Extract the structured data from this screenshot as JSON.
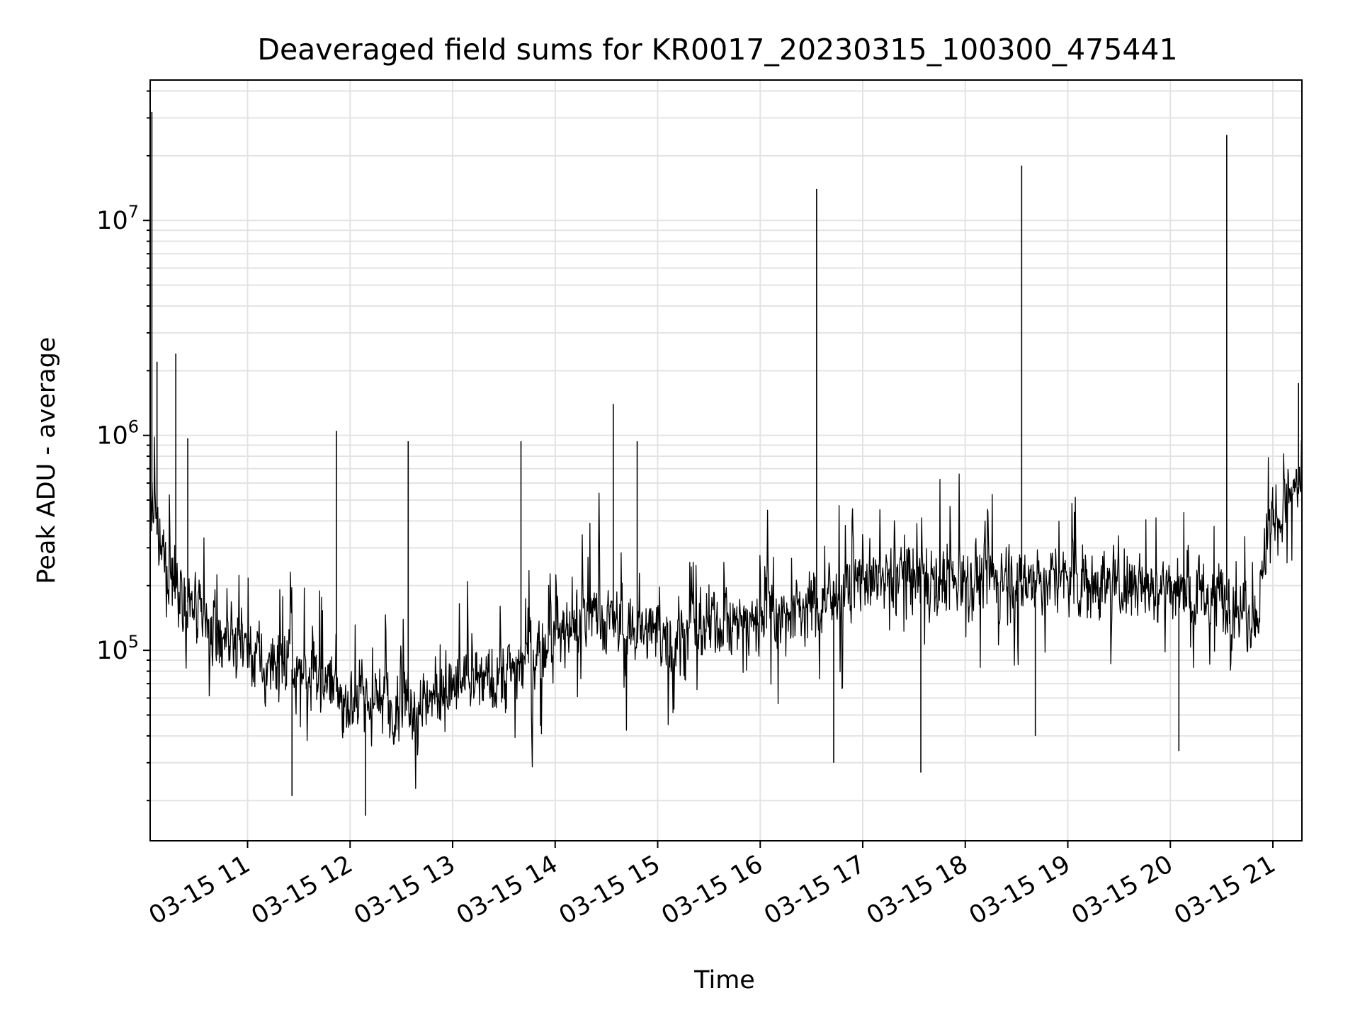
{
  "chart_data": {
    "type": "line",
    "title": "Deaveraged field sums for KR0017_20230315_100300_475441",
    "xlabel": "Time",
    "ylabel": "Peak ADU - average",
    "yscale": "log",
    "grid": true,
    "grid_minor": true,
    "line_color": "#000000",
    "grid_color": "#e3e3e3",
    "xlim": [
      "03-15 10:03",
      "03-15 21:17"
    ],
    "ylim": [
      13000,
      45000000
    ],
    "x_ticks": [
      "03-15 11",
      "03-15 12",
      "03-15 13",
      "03-15 14",
      "03-15 15",
      "03-15 16",
      "03-15 17",
      "03-15 18",
      "03-15 19",
      "03-15 20",
      "03-15 21"
    ],
    "y_ticks": [
      {
        "base": "10",
        "exp": "5",
        "value": 100000
      },
      {
        "base": "10",
        "exp": "6",
        "value": 1000000
      },
      {
        "base": "10",
        "exp": "7",
        "value": 10000000
      }
    ],
    "baseline": [
      {
        "x": "03-15 10:03",
        "y": 480000
      },
      {
        "x": "03-15 10:10",
        "y": 270000
      },
      {
        "x": "03-15 10:20",
        "y": 190000
      },
      {
        "x": "03-15 10:35",
        "y": 130000
      },
      {
        "x": "03-15 10:50",
        "y": 105000
      },
      {
        "x": "03-15 11:10",
        "y": 88000
      },
      {
        "x": "03-15 11:30",
        "y": 80000
      },
      {
        "x": "03-15 11:50",
        "y": 65000
      },
      {
        "x": "03-15 12:10",
        "y": 56000
      },
      {
        "x": "03-15 12:40",
        "y": 58000
      },
      {
        "x": "03-15 13:00",
        "y": 66000
      },
      {
        "x": "03-15 13:30",
        "y": 78000
      },
      {
        "x": "03-15 14:00",
        "y": 110000
      },
      {
        "x": "03-15 14:20",
        "y": 150000
      },
      {
        "x": "03-15 14:45",
        "y": 125000
      },
      {
        "x": "03-15 15:10",
        "y": 115000
      },
      {
        "x": "03-15 15:40",
        "y": 135000
      },
      {
        "x": "03-15 16:10",
        "y": 145000
      },
      {
        "x": "03-15 16:40",
        "y": 170000
      },
      {
        "x": "03-15 17:00",
        "y": 210000
      },
      {
        "x": "03-15 17:40",
        "y": 225000
      },
      {
        "x": "03-15 18:20",
        "y": 215000
      },
      {
        "x": "03-15 19:00",
        "y": 210000
      },
      {
        "x": "03-15 19:30",
        "y": 205000
      },
      {
        "x": "03-15 20:00",
        "y": 195000
      },
      {
        "x": "03-15 20:30",
        "y": 175000
      },
      {
        "x": "03-15 20:50",
        "y": 150000
      },
      {
        "x": "03-15 21:00",
        "y": 380000
      },
      {
        "x": "03-15 21:17",
        "y": 620000
      }
    ],
    "spikes": [
      {
        "x": "03-15 10:04",
        "y": 32000000
      },
      {
        "x": "03-15 10:07",
        "y": 2200000
      },
      {
        "x": "03-15 10:18",
        "y": 2400000
      },
      {
        "x": "03-15 10:25",
        "y": 970000
      },
      {
        "x": "03-15 11:52",
        "y": 1050000
      },
      {
        "x": "03-15 12:34",
        "y": 940000
      },
      {
        "x": "03-15 13:40",
        "y": 940000
      },
      {
        "x": "03-15 14:34",
        "y": 1400000
      },
      {
        "x": "03-15 14:48",
        "y": 940000
      },
      {
        "x": "03-15 16:33",
        "y": 14000000
      },
      {
        "x": "03-15 18:33",
        "y": 18000000
      },
      {
        "x": "03-15 20:33",
        "y": 25000000
      },
      {
        "x": "03-15 21:15",
        "y": 1750000
      }
    ],
    "dips": [
      {
        "x": "03-15 11:26",
        "y": 21000
      },
      {
        "x": "03-15 12:09",
        "y": 17000
      },
      {
        "x": "03-15 16:43",
        "y": 30000
      },
      {
        "x": "03-15 17:34",
        "y": 27000
      },
      {
        "x": "03-15 18:41",
        "y": 40000
      },
      {
        "x": "03-15 20:05",
        "y": 34000
      }
    ]
  }
}
